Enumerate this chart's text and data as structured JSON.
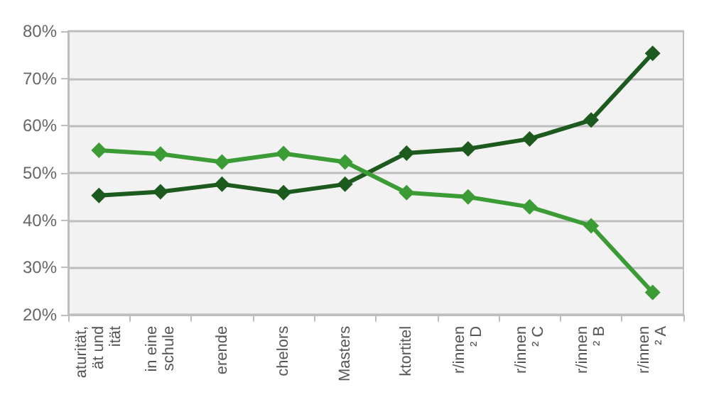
{
  "chart_data": {
    "type": "line",
    "categories": [
      "aturität,\nät und\nität",
      "in eine\nschule",
      "erende",
      "chelors",
      "Masters",
      "ktortitel",
      "r/innen\n² D",
      "r/innen\n² C",
      "r/innen\n² B",
      "r/innen\n² A"
    ],
    "series": [
      {
        "color": "#1d5a1d",
        "values": [
          45.2,
          46.0,
          47.6,
          45.8,
          47.6,
          54.2,
          55.1,
          57.2,
          61.2,
          75.3
        ]
      },
      {
        "color": "#3b9c35",
        "values": [
          54.8,
          54.0,
          52.3,
          54.1,
          52.3,
          45.8,
          44.9,
          42.8,
          38.8,
          24.7
        ]
      }
    ],
    "ylim": [
      20,
      80
    ],
    "yticks": [
      {
        "value": 20,
        "label": "20%"
      },
      {
        "value": 30,
        "label": "30%"
      },
      {
        "value": 40,
        "label": "40%"
      },
      {
        "value": 50,
        "label": "50%"
      },
      {
        "value": 60,
        "label": "60%"
      },
      {
        "value": 70,
        "label": "70%"
      },
      {
        "value": 80,
        "label": "80%"
      }
    ],
    "grid": "y",
    "marker": "diamond",
    "line_style": "solid"
  }
}
